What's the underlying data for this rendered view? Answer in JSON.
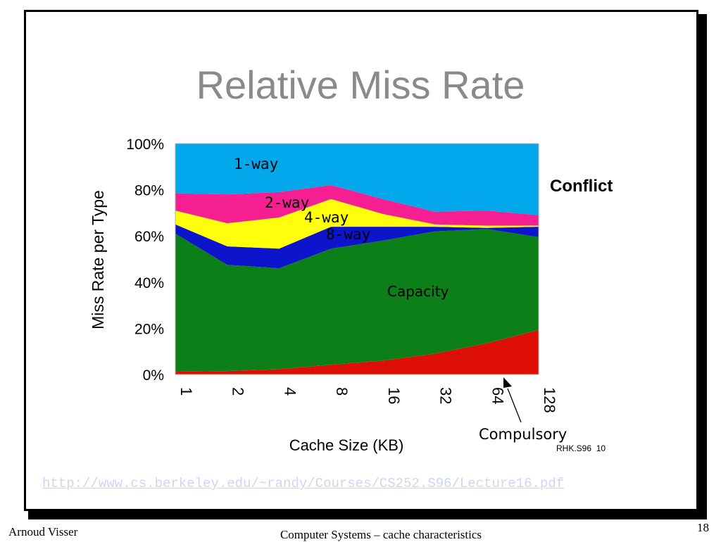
{
  "slide": {
    "title": "Relative Miss Rate",
    "source_link": "http://www.cs.berkeley.edu/~randy/Courses/CS252.S96/Lecture16.pdf",
    "footer_left": "Arnoud Visser",
    "footer_center": "Computer Systems – cache characteristics",
    "page_number": "18"
  },
  "chart_data": {
    "type": "area",
    "xlabel": "Cache Size (KB)",
    "ylabel": "Miss Rate per Type",
    "ylim": [
      0,
      100
    ],
    "y_ticks": [
      "0%",
      "20%",
      "40%",
      "60%",
      "80%",
      "100%"
    ],
    "categories": [
      "1",
      "2",
      "4",
      "8",
      "16",
      "32",
      "64",
      "128"
    ],
    "series": [
      {
        "name": "Compulsory",
        "color": "#dd0f06",
        "top": [
          1.2,
          1.5,
          2.3,
          4.2,
          6.0,
          9.0,
          13.5,
          19.3
        ]
      },
      {
        "name": "Capacity",
        "color": "#0d7f18",
        "top": [
          61.0,
          47.5,
          46.0,
          54.5,
          58.0,
          62.0,
          63.0,
          59.5
        ]
      },
      {
        "name": "8-way",
        "color": "#0c14cc",
        "top": [
          65.0,
          55.5,
          54.5,
          64.0,
          64.0,
          64.0,
          63.5,
          64.0
        ]
      },
      {
        "name": "4-way",
        "color": "#ffff0b",
        "top": [
          71.0,
          65.5,
          68.0,
          76.0,
          69.5,
          65.0,
          64.5,
          64.5
        ]
      },
      {
        "name": "2-way",
        "color": "#f51f92",
        "top": [
          78.5,
          78.0,
          79.0,
          82.0,
          76.0,
          70.5,
          71.0,
          69.0
        ]
      },
      {
        "name": "1-way",
        "color": "#02a8eb",
        "top": [
          100,
          100,
          100,
          100,
          100,
          100,
          100,
          100
        ]
      }
    ],
    "labels": {
      "one_way": "1-way",
      "two_way": "2-way",
      "four_way": "4-way",
      "eight_way": "8-way",
      "capacity": "Capacity",
      "conflict": "Conflict",
      "compulsory": "Compulsory",
      "credit": "RHK.S96  10"
    }
  }
}
